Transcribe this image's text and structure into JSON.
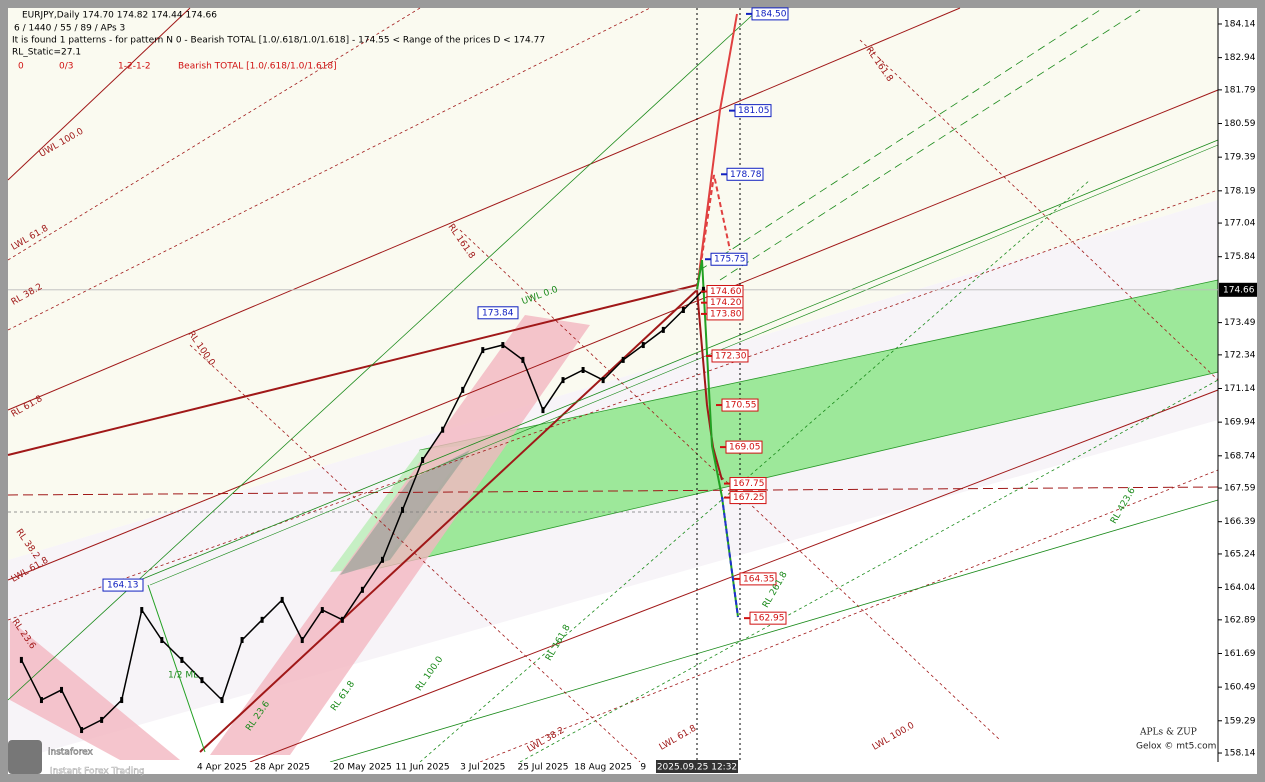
{
  "header": {
    "lines": [
      "EURJPY,Daily  174.70 174.82 174.44 174.66",
      "6 / 1440 / 55 / 89 / APs 3",
      "It is found 1 patterns  -  for pattern N 0 - Bearish TOTAL [1.0/.618/1.0/1.618] - 174.55 < Range of the prices D < 174.77",
      "RL_Static=27.1"
    ],
    "status": [
      "0",
      "0/3",
      "1-2-1-2",
      "Bearish TOTAL [1.0/.618/1.0/1.618]"
    ]
  },
  "chart_data": {
    "type": "line",
    "color": "#000000",
    "categories": [
      null,
      null,
      null,
      null,
      null,
      null,
      null,
      null,
      null,
      null,
      "4 Apr 2025",
      null,
      null,
      "28 Apr 2025",
      null,
      null,
      null,
      "20 May 2025",
      null,
      null,
      "11 Jun 2025",
      null,
      null,
      "3 Jul 2025",
      null,
      null,
      "25 Jul 2025",
      null,
      null,
      "18 Aug 2025",
      null,
      "9",
      null,
      null,
      null
    ],
    "values": [
      161.46,
      160.03,
      160.39,
      158.96,
      159.32,
      160.03,
      163.24,
      162.17,
      161.46,
      160.74,
      160.03,
      162.17,
      162.89,
      163.6,
      162.17,
      163.24,
      162.89,
      163.96,
      165.03,
      166.81,
      168.59,
      169.67,
      171.09,
      172.51,
      172.69,
      172.16,
      170.37,
      171.44,
      171.8,
      171.44,
      172.16,
      172.69,
      173.23,
      173.94,
      174.66
    ],
    "ylim": [
      157.82,
      184.71
    ],
    "yticks": [
      184.14,
      182.94,
      181.79,
      180.59,
      179.39,
      178.19,
      177.04,
      175.84,
      173.49,
      172.34,
      171.14,
      169.94,
      168.74,
      167.59,
      166.39,
      165.24,
      164.04,
      162.89,
      161.69,
      160.49,
      159.29,
      158.14
    ],
    "last_price": 174.66,
    "cursor_time": "2025.09.25 12:32",
    "levels": [
      {
        "value": 184.5,
        "label": "184.50",
        "color": "#1020c0"
      },
      {
        "value": 181.05,
        "color": "#1020c0"
      },
      {
        "value": 178.78,
        "color": "#1020c0"
      },
      {
        "value": 175.75,
        "color": "#1020c0"
      },
      {
        "value": 174.6,
        "label": "174.60",
        "color": "#d01010"
      },
      {
        "value": 174.2,
        "label": "174.20",
        "color": "#d01010"
      },
      {
        "value": 173.8,
        "label": "173.80",
        "color": "#d01010"
      },
      {
        "value": 172.3,
        "label": "172.30",
        "color": "#d01010"
      },
      {
        "value": 170.55,
        "color": "#d01010"
      },
      {
        "value": 169.05,
        "color": "#d01010"
      },
      {
        "value": 167.75,
        "color": "#d01010"
      },
      {
        "value": 167.25,
        "color": "#d01010"
      },
      {
        "value": 164.35,
        "color": "#d01010"
      },
      {
        "value": 162.95,
        "color": "#d01010"
      }
    ],
    "swings": [
      {
        "value": 173.84,
        "color": "#1020c0"
      },
      {
        "value": 164.13,
        "color": "#1020c0"
      }
    ],
    "fib_labels": [
      "UWL 100.0",
      "LWL 61.8",
      "RL 38.2",
      "RL 61.8",
      "RL 161.8",
      "RL 100.0",
      "RL 161.8",
      "UWL 0.0",
      "RL 38.2",
      "LWL 61.8",
      "RL 23.6",
      "RL 161.8",
      "RL 100.0",
      "RL 61.8",
      "RL 23.6",
      "LWL 38.2",
      "LWL 61.8",
      "LWL 100.0",
      "RL 261.8",
      "RL 423.6",
      "1/2 ML"
    ]
  },
  "footer": {
    "title": "APLs & ZUP",
    "credit": "Gelox © mt5.com",
    "watermark": "instaforex",
    "tagline": "Instant Forex Trading"
  }
}
